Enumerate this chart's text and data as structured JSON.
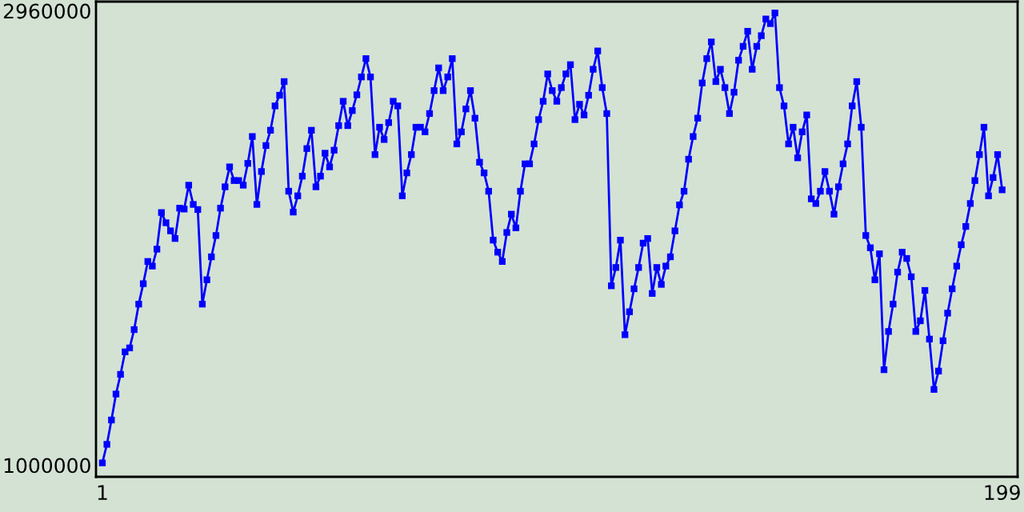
{
  "chart_data": {
    "type": "line",
    "x": [
      1,
      2,
      3,
      4,
      5,
      6,
      7,
      8,
      9,
      10,
      11,
      12,
      13,
      14,
      15,
      16,
      17,
      18,
      19,
      20,
      21,
      22,
      23,
      24,
      25,
      26,
      27,
      28,
      29,
      30,
      31,
      32,
      33,
      34,
      35,
      36,
      37,
      38,
      39,
      40,
      41,
      42,
      43,
      44,
      45,
      46,
      47,
      48,
      49,
      50,
      51,
      52,
      53,
      54,
      55,
      56,
      57,
      58,
      59,
      60,
      61,
      62,
      63,
      64,
      65,
      66,
      67,
      68,
      69,
      70,
      71,
      72,
      73,
      74,
      75,
      76,
      77,
      78,
      79,
      80,
      81,
      82,
      83,
      84,
      85,
      86,
      87,
      88,
      89,
      90,
      91,
      92,
      93,
      94,
      95,
      96,
      97,
      98,
      99,
      100,
      101,
      102,
      103,
      104,
      105,
      106,
      107,
      108,
      109,
      110,
      111,
      112,
      113,
      114,
      115,
      116,
      117,
      118,
      119,
      120,
      121,
      122,
      123,
      124,
      125,
      126,
      127,
      128,
      129,
      130,
      131,
      132,
      133,
      134,
      135,
      136,
      137,
      138,
      139,
      140,
      141,
      142,
      143,
      144,
      145,
      146,
      147,
      148,
      149,
      150,
      151,
      152,
      153,
      154,
      155,
      156,
      157,
      158,
      159,
      160,
      161,
      162,
      163,
      164,
      165,
      166,
      167,
      168,
      169,
      170,
      171,
      172,
      173,
      174,
      175,
      176,
      177,
      178,
      179,
      180,
      181,
      182,
      183,
      184,
      185,
      186,
      187,
      188,
      189,
      190,
      191,
      192,
      193,
      194,
      195,
      196,
      197,
      198,
      199
    ],
    "series": [
      {
        "color": "#0000ff",
        "values": [
          1010000,
          1090000,
          1195000,
          1307000,
          1392000,
          1489000,
          1506000,
          1585000,
          1695000,
          1783000,
          1879000,
          1859000,
          1932000,
          2090000,
          2046000,
          2011000,
          1978000,
          2109000,
          2105000,
          2208000,
          2125000,
          2103000,
          1695000,
          1800000,
          1899000,
          1991000,
          2109000,
          2201000,
          2287000,
          2228000,
          2228000,
          2208000,
          2302000,
          2418000,
          2125000,
          2267000,
          2379000,
          2445000,
          2550000,
          2596000,
          2655000,
          2182000,
          2092000,
          2162000,
          2247000,
          2366000,
          2445000,
          2201000,
          2247000,
          2346000,
          2287000,
          2359000,
          2465000,
          2570000,
          2465000,
          2530000,
          2598000,
          2675000,
          2754000,
          2675000,
          2340000,
          2458000,
          2405000,
          2478000,
          2570000,
          2550000,
          2162000,
          2261000,
          2340000,
          2458000,
          2458000,
          2438000,
          2517000,
          2616000,
          2714000,
          2616000,
          2675000,
          2754000,
          2386000,
          2438000,
          2537000,
          2616000,
          2497000,
          2307000,
          2261000,
          2182000,
          1971000,
          1919000,
          1879000,
          2004000,
          2083000,
          2024000,
          2182000,
          2300000,
          2300000,
          2386000,
          2491000,
          2570000,
          2688000,
          2616000,
          2570000,
          2629000,
          2688000,
          2728000,
          2491000,
          2557000,
          2511000,
          2596000,
          2708000,
          2787000,
          2629000,
          2517000,
          1774000,
          1853000,
          1971000,
          1563000,
          1662000,
          1761000,
          1853000,
          1958000,
          1978000,
          1741000,
          1853000,
          1780000,
          1859000,
          1899000,
          2011000,
          2123000,
          2182000,
          2320000,
          2418000,
          2497000,
          2649000,
          2754000,
          2826000,
          2655000,
          2708000,
          2629000,
          2517000,
          2609000,
          2747000,
          2807000,
          2872000,
          2708000,
          2807000,
          2853000,
          2925000,
          2905000,
          2951000,
          2629000,
          2550000,
          2386000,
          2458000,
          2326000,
          2438000,
          2511000,
          2149000,
          2129000,
          2182000,
          2267000,
          2182000,
          2083000,
          2201000,
          2300000,
          2386000,
          2550000,
          2655000,
          2458000,
          1991000,
          1938000,
          1800000,
          1912000,
          1412000,
          1577000,
          1695000,
          1833000,
          1919000,
          1892000,
          1813000,
          1577000,
          1623000,
          1754000,
          1544000,
          1327000,
          1406000,
          1537000,
          1656000,
          1761000,
          1859000,
          1951000,
          2030000,
          2129000,
          2228000,
          2340000,
          2458000,
          2162000,
          2241000,
          2340000,
          2188000
        ]
      }
    ],
    "xlim": [
      -0.4,
      202.4
    ],
    "ylim": [
      950000,
      3000000
    ],
    "xticks": [
      1,
      199
    ],
    "yticks": [
      1000000,
      2960000
    ],
    "marker": "square",
    "line_style": "solid"
  }
}
